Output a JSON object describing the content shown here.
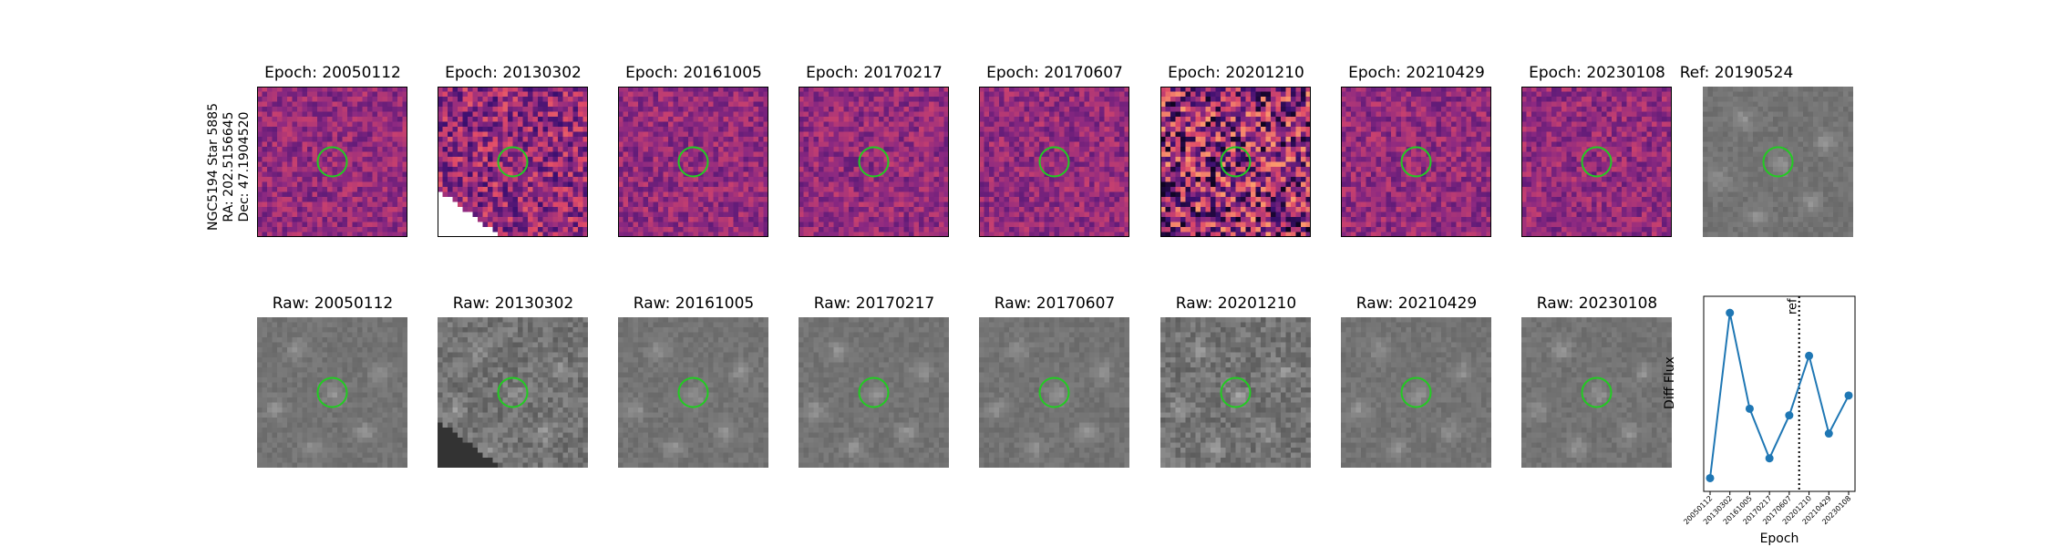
{
  "target": {
    "name": "NGC5194 Star 5885",
    "ra_label": "RA: 202.5156645",
    "dec_label": "Dec: 47.1904520"
  },
  "diff_panels": [
    {
      "title": "Epoch: 20050112"
    },
    {
      "title": "Epoch: 20130302"
    },
    {
      "title": "Epoch: 20161005"
    },
    {
      "title": "Epoch: 20170217"
    },
    {
      "title": "Epoch: 20170607"
    },
    {
      "title": "Epoch: 20201210"
    },
    {
      "title": "Epoch: 20210429"
    },
    {
      "title": "Epoch: 20230108"
    }
  ],
  "ref_panel": {
    "title": "Ref: 20190524"
  },
  "raw_panels": [
    {
      "title": "Raw: 20050112"
    },
    {
      "title": "Raw: 20130302"
    },
    {
      "title": "Raw: 20161005"
    },
    {
      "title": "Raw: 20170217"
    },
    {
      "title": "Raw: 20170607"
    },
    {
      "title": "Raw: 20201210"
    },
    {
      "title": "Raw: 20210429"
    },
    {
      "title": "Raw: 20230108"
    }
  ],
  "colors": {
    "marker_circle": "#22cc22",
    "series": "#1f77b4",
    "diff_colormap": "magma",
    "raw_colormap": "gray"
  },
  "chart_data": {
    "type": "line",
    "xlabel": "Epoch",
    "ylabel": "Diff Flux",
    "categories": [
      "20050112",
      "20130302",
      "20161005",
      "20170217",
      "20170607",
      "20201210",
      "20210429",
      "20230108"
    ],
    "values": [
      0.0,
      1.0,
      0.42,
      0.12,
      0.38,
      0.74,
      0.27,
      0.5
    ],
    "value_units": "relative (no y tick labels shown)",
    "ylim": [
      -0.08,
      1.1
    ],
    "reference_line": {
      "position_between": [
        "20170607",
        "20201210"
      ],
      "label": "ref",
      "style": "dotted"
    },
    "grid": false,
    "legend": "none"
  }
}
